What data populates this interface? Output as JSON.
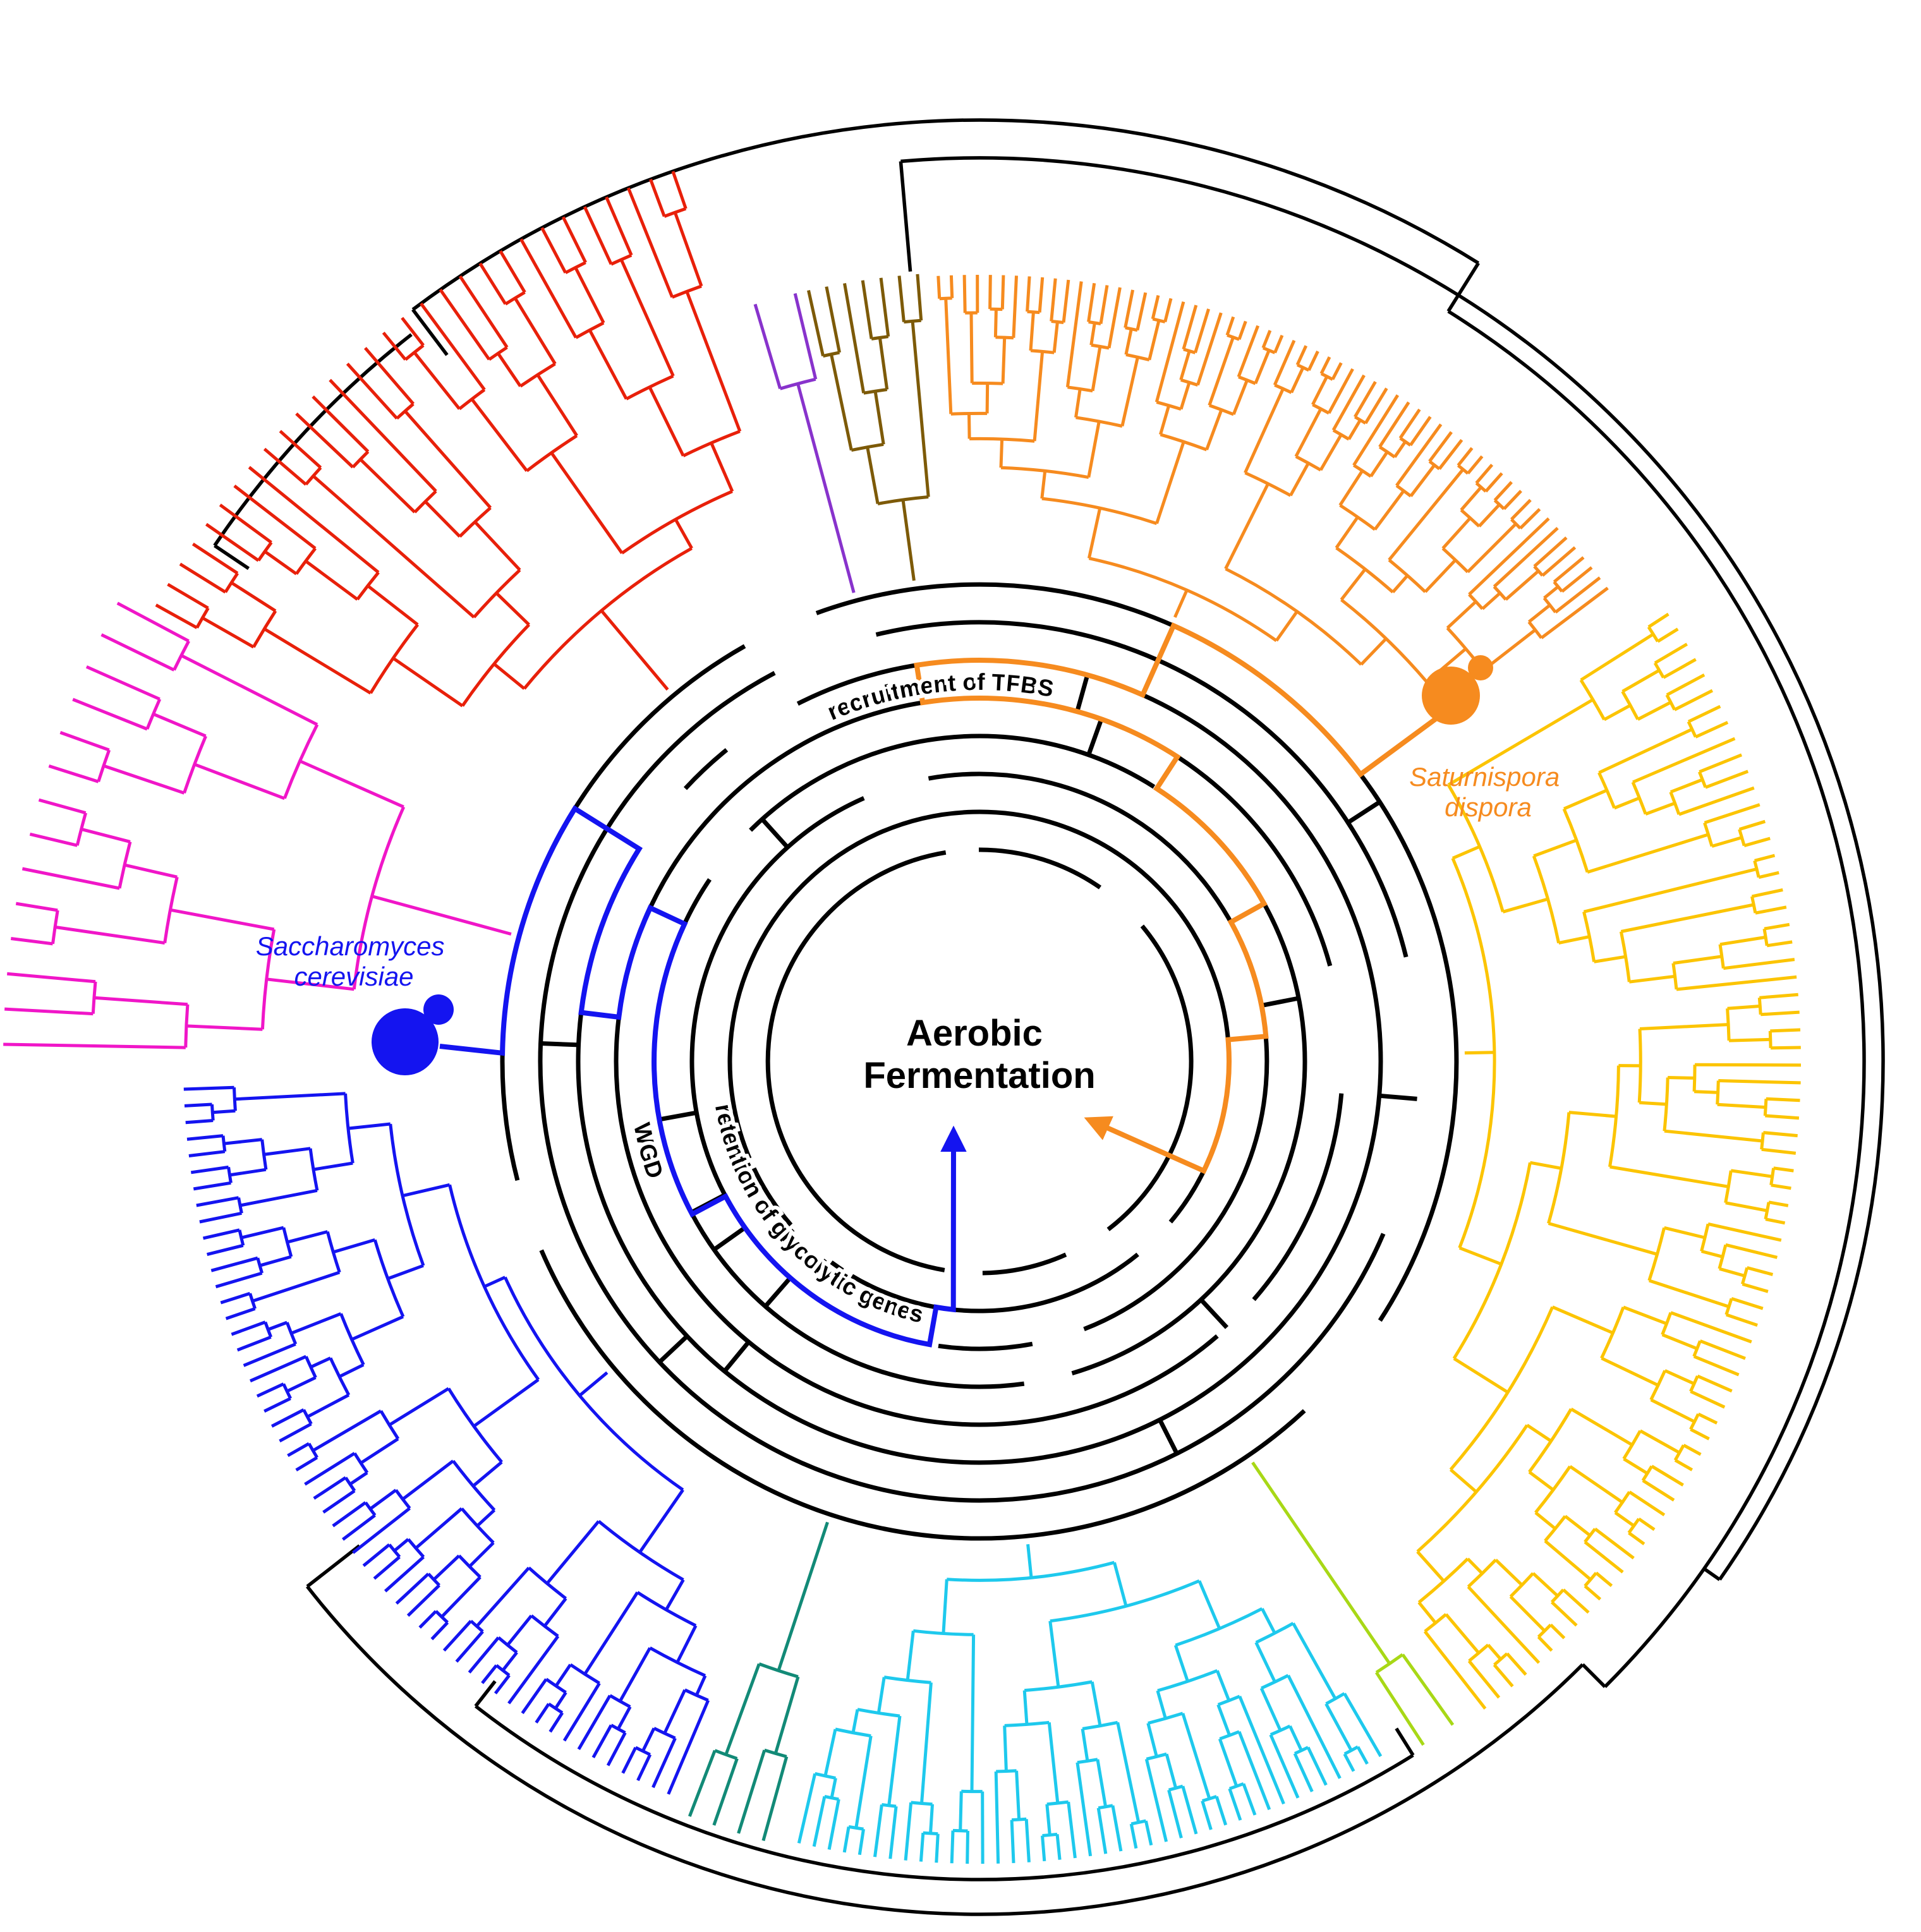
{
  "figure": {
    "type": "circular-phylogenetic-tree",
    "center_label": {
      "line1": "Aerobic",
      "line2": "Fermentation"
    },
    "annotations": {
      "tfbs": {
        "label": "recruitment of TFBS"
      },
      "glycolytic": {
        "label": "retention of glycolytic genes"
      },
      "wgd": {
        "label": "WGD"
      }
    },
    "species": {
      "cerevisiae": {
        "line1": "Saccharomyces",
        "line2": "cerevisiae",
        "color": "#1414f0"
      },
      "dispora": {
        "line1": "Saturnispora",
        "line2": "dispora",
        "color": "#f68b1f"
      }
    },
    "colors": {
      "backbone": "#000000",
      "highlight_blue": "#1414f0",
      "highlight_orange": "#f68b1f",
      "background": "#ffffff"
    },
    "clades": [
      {
        "name": "red",
        "color": "#e8200a",
        "tips": 30,
        "a0": -151,
        "a1": -109,
        "tipR": 1490,
        "seed": 11
      },
      {
        "name": "magenta",
        "color": "#f016c8",
        "tips": 14,
        "a0": -179,
        "a1": -152,
        "tipR": 1545,
        "seed": 22
      },
      {
        "name": "purple",
        "color": "#8833cc",
        "tips": 2,
        "a0": -106.5,
        "a1": -103.5,
        "tipR": 1250,
        "seed": 33
      },
      {
        "name": "olive",
        "color": "#7d5a08",
        "tips": 7,
        "a0": -102.5,
        "a1": -94.5,
        "tipR": 1250,
        "seed": 44
      },
      {
        "name": "orange",
        "color": "#f68b1f",
        "tips": 60,
        "a0": -93,
        "a1": -37,
        "tipR": 1245,
        "seed": 55
      },
      {
        "name": "yellow",
        "color": "#fcc400",
        "tips": 70,
        "a0": -33,
        "a1": 52,
        "tipR": 1300,
        "seed": 66
      },
      {
        "name": "yellow-green",
        "color": "#a8d816",
        "tips": 2,
        "a0": 54.5,
        "a1": 57,
        "tipR": 1290,
        "seed": 77
      },
      {
        "name": "cyan",
        "color": "#1ec9ed",
        "tips": 40,
        "a0": 60,
        "a1": 103,
        "tipR": 1270,
        "seed": 88
      },
      {
        "name": "teal",
        "color": "#128a77",
        "tips": 4,
        "a0": 105.5,
        "a1": 111,
        "tipR": 1280,
        "seed": 99
      },
      {
        "name": "blue",
        "color": "#1414f0",
        "tips": 55,
        "a0": 113,
        "a1": 178,
        "tipR": 1260,
        "seed": 110
      }
    ]
  }
}
